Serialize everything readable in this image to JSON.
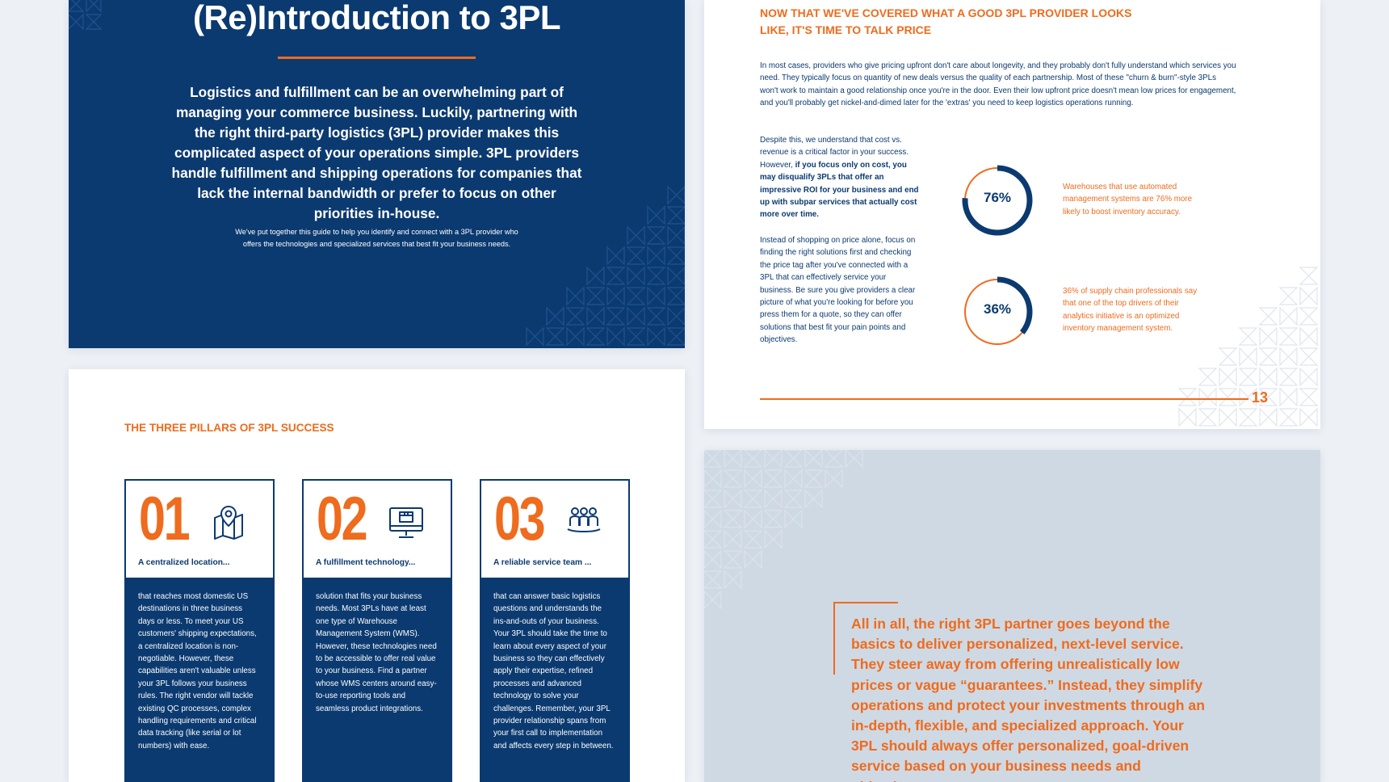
{
  "intro": {
    "title": "(Re)Introduction to 3PL",
    "lead": "Logistics and fulfillment can be an overwhelming part of managing your commerce business. Luckily, partnering with the right third-party logistics (3PL) provider makes this complicated aspect of your operations simple. 3PL providers handle fulfillment and shipping operations for companies that lack the internal bandwidth or prefer to focus on other priorities in-house.",
    "small": "We've put together this guide to help you identify and connect with a 3PL provider who offers the technologies and specialized services that best fit your business needs."
  },
  "price": {
    "heading": "NOW THAT WE'VE COVERED WHAT A GOOD 3PL PROVIDER LOOKS LIKE, IT'S TIME TO TALK PRICE",
    "p1": "In most cases, providers who give pricing upfront don't care about longevity, and they probably don't fully understand which services you need. They typically focus on quantity of new deals versus the quality of each partnership. Most of these \"churn & burn\"-style 3PLs won't work to maintain a good relationship once you're in the door. Even their low upfront price doesn't mean low prices for engagement, and you'll probably get nickel-and-dimed later for the 'extras' you need to keep logistics operations running.",
    "p2_start": "Despite this, we understand that cost vs. revenue is a critical factor in your success. However, ",
    "p2_bold": "if you focus only on cost, you may disqualify 3PLs that offer an impressive ROI for your business and end up with subpar services that actually cost more over time.",
    "p3": "Instead of shopping on price alone, focus on finding the right solutions first and checking the price tag after you've connected with a 3PL that can effectively service your business. Be sure you give providers a clear picture of what you're looking for before you press them for a quote, so they can offer solutions that best fit your pain points and objectives.",
    "stats": [
      {
        "value": 76,
        "label": "76%",
        "text": "Warehouses that use automated management systems are 76% more likely to boost inventory accuracy."
      },
      {
        "value": 36,
        "label": "36%",
        "text": "36% of supply chain professionals say that one of the top drivers of their analytics initiative is an optimized inventory management system."
      }
    ],
    "page_number": "13"
  },
  "pillars": {
    "heading": "THE THREE PILLARS OF 3PL SUCCESS",
    "cards": [
      {
        "number": "01",
        "icon": "map-pin-icon",
        "subtitle": "A centralized location...",
        "body": "that reaches most domestic US destinations in three business days or less. To meet your US customers' shipping expectations, a centralized location is non-negotiable. However, these capabilities aren't valuable unless your 3PL follows your business rules. The right vendor will tackle existing QC processes, complex handling requirements and critical data tracking (like serial or lot numbers) with ease."
      },
      {
        "number": "02",
        "icon": "monitor-box-icon",
        "subtitle": "A fulfillment technology...",
        "body": "solution that fits your business needs. Most 3PLs have at least one type of Warehouse Management System (WMS). However, these technologies need to be accessible to offer real value to your business. Find a partner whose WMS centers around easy-to-use reporting tools and seamless product integrations."
      },
      {
        "number": "03",
        "icon": "team-icon",
        "subtitle": "A reliable service team ...",
        "body": "that can answer basic logistics questions and understands the ins-and-outs of your business. Your 3PL should take the time to learn about every aspect of your business so they can effectively apply their expertise, refined processes and advanced technology to solve your challenges. Remember, your 3PL provider relationship spans from your first call to implementation and affects every step in between."
      }
    ]
  },
  "conclusion": {
    "quote": "All in all, the right 3PL partner goes beyond the basics to deliver personalized, next-level service. They steer away from offering unrealistically low prices or vague “guarantees.” Instead, they simplify operations and protect your investments through an in-depth, flexible, and specialized approach. Your 3PL should always offer personalized, goal-driven service based on your business needs and objectives."
  },
  "colors": {
    "navy": "#0b3a70",
    "orange": "#ef6b1d",
    "light_blue": "#cfd9e4"
  }
}
